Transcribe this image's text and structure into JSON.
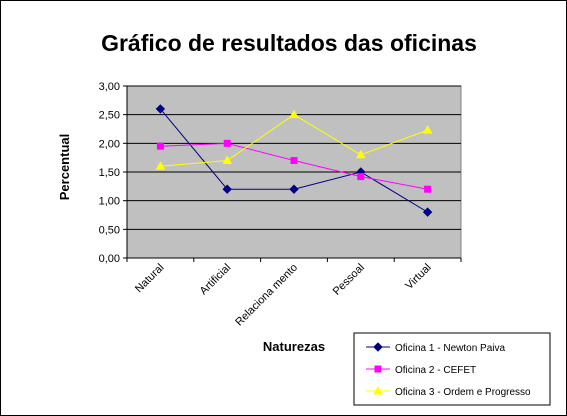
{
  "chart_data": {
    "type": "line",
    "title": "Gráfico de resultados das oficinas",
    "xlabel": "Naturezas",
    "ylabel": "Percentual",
    "categories": [
      "Natural",
      "Artificial",
      "Relaciona mento",
      "Pessoal",
      "Virtual"
    ],
    "ylim": [
      0,
      3
    ],
    "yticks": [
      0,
      0.5,
      1,
      1.5,
      2,
      2.5,
      3
    ],
    "ytick_labels": [
      "0,00",
      "0,50",
      "1,00",
      "1,50",
      "2,00",
      "2,50",
      "3,00"
    ],
    "grid": true,
    "plot_background": "#c0c0c0",
    "legend_position": "bottom-right",
    "series": [
      {
        "name": "Oficina 1 - Newton Paiva",
        "color": "#000080",
        "marker": "diamond",
        "values": [
          2.6,
          1.2,
          1.2,
          1.5,
          0.8
        ]
      },
      {
        "name": "Oficina 2 - CEFET",
        "color": "#ff00ff",
        "marker": "square",
        "values": [
          1.95,
          2.0,
          1.7,
          1.42,
          1.2
        ]
      },
      {
        "name": "Oficina 3 - Ordem e Progresso",
        "color": "#ffff00",
        "marker": "triangle",
        "values": [
          1.6,
          1.7,
          2.5,
          1.8,
          2.23
        ]
      }
    ]
  }
}
